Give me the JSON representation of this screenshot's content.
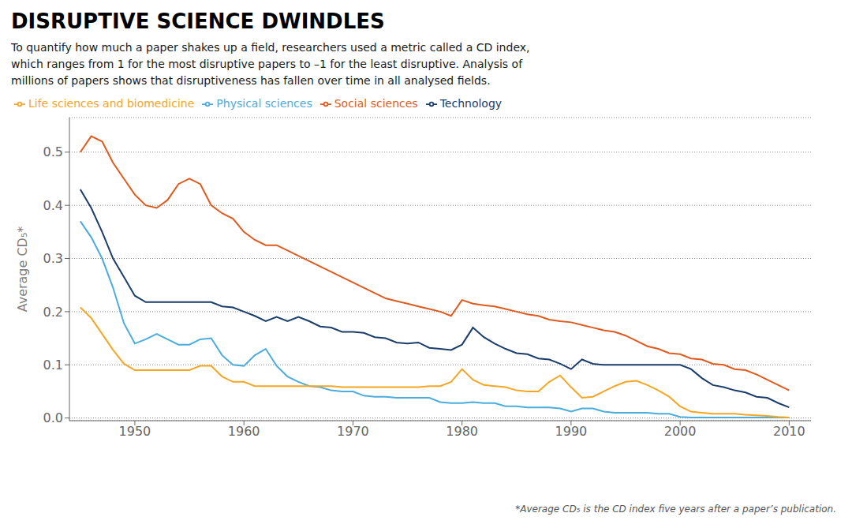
{
  "chart_data": {
    "type": "line",
    "title": "DISRUPTIVE SCIENCE DWINDLES",
    "subtitle": "To quantify how much a paper shakes up a field, researchers used a metric called a CD index,\nwhich ranges from 1 for the most disruptive papers to –1 for the least disruptive. Analysis of\nmillions of papers shows that disruptiveness has fallen over time in all analysed fields.",
    "annotations": [
      "*Average CD₅ is the CD index five years after a paper’s publication."
    ],
    "ylabel": "Average CD₅*",
    "xlim": [
      1944,
      2012
    ],
    "xticks": [
      1950,
      1960,
      1970,
      1980,
      1990,
      2000,
      2010
    ],
    "ylim": [
      -0.005,
      0.565
    ],
    "yticks": [
      {
        "value": 0,
        "label": "0.0"
      },
      {
        "value": 0.1,
        "label": "0.1"
      },
      {
        "value": 0.2,
        "label": "0.2"
      },
      {
        "value": 0.3,
        "label": "0.3"
      },
      {
        "value": 0.4,
        "label": "0.4"
      },
      {
        "value": 0.5,
        "label": "0.5"
      }
    ],
    "grid": true,
    "legend": "top",
    "x": [
      1945,
      1946,
      1947,
      1948,
      1949,
      1950,
      1951,
      1952,
      1953,
      1954,
      1955,
      1956,
      1957,
      1958,
      1959,
      1960,
      1961,
      1962,
      1963,
      1964,
      1965,
      1966,
      1967,
      1968,
      1969,
      1970,
      1971,
      1972,
      1973,
      1974,
      1975,
      1976,
      1977,
      1978,
      1979,
      1980,
      1981,
      1982,
      1983,
      1984,
      1985,
      1986,
      1987,
      1988,
      1989,
      1990,
      1991,
      1992,
      1993,
      1994,
      1995,
      1996,
      1997,
      1998,
      1999,
      2000,
      2001,
      2002,
      2003,
      2004,
      2005,
      2006,
      2007,
      2008,
      2009,
      2010
    ],
    "series": [
      {
        "name": "Social sciences",
        "color": "#E05A1E",
        "values": [
          0.5,
          0.53,
          0.52,
          0.48,
          0.45,
          0.42,
          0.4,
          0.395,
          0.41,
          0.44,
          0.45,
          0.44,
          0.4,
          0.385,
          0.375,
          0.35,
          0.335,
          0.325,
          0.325,
          0.315,
          0.305,
          0.295,
          0.285,
          0.275,
          0.265,
          0.255,
          0.245,
          0.235,
          0.225,
          0.22,
          0.215,
          0.21,
          0.205,
          0.2,
          0.192,
          0.222,
          0.215,
          0.212,
          0.21,
          0.205,
          0.2,
          0.195,
          0.192,
          0.185,
          0.182,
          0.18,
          0.175,
          0.17,
          0.165,
          0.162,
          0.155,
          0.145,
          0.135,
          0.13,
          0.122,
          0.12,
          0.112,
          0.11,
          0.102,
          0.1,
          0.092,
          0.09,
          0.082,
          0.072,
          0.062,
          0.052
        ]
      },
      {
        "name": "Technology",
        "color": "#1A3D6B",
        "values": [
          0.43,
          0.395,
          0.35,
          0.3,
          0.265,
          0.23,
          0.218,
          0.218,
          0.218,
          0.218,
          0.218,
          0.218,
          0.218,
          0.21,
          0.208,
          0.2,
          0.192,
          0.182,
          0.19,
          0.182,
          0.19,
          0.182,
          0.172,
          0.17,
          0.162,
          0.162,
          0.16,
          0.152,
          0.15,
          0.142,
          0.14,
          0.142,
          0.132,
          0.13,
          0.128,
          0.138,
          0.17,
          0.152,
          0.14,
          0.13,
          0.122,
          0.12,
          0.112,
          0.11,
          0.102,
          0.092,
          0.11,
          0.102,
          0.1,
          0.1,
          0.1,
          0.1,
          0.1,
          0.1,
          0.1,
          0.1,
          0.092,
          0.075,
          0.062,
          0.058,
          0.052,
          0.048,
          0.04,
          0.038,
          0.028,
          0.02
        ]
      },
      {
        "name": "Physical sciences",
        "color": "#4AADDB",
        "values": [
          0.37,
          0.34,
          0.3,
          0.245,
          0.178,
          0.14,
          0.148,
          0.158,
          0.148,
          0.138,
          0.138,
          0.148,
          0.15,
          0.118,
          0.1,
          0.098,
          0.118,
          0.13,
          0.098,
          0.078,
          0.068,
          0.06,
          0.058,
          0.052,
          0.05,
          0.05,
          0.042,
          0.04,
          0.04,
          0.038,
          0.038,
          0.038,
          0.038,
          0.03,
          0.028,
          0.028,
          0.03,
          0.028,
          0.028,
          0.022,
          0.022,
          0.02,
          0.02,
          0.02,
          0.018,
          0.012,
          0.018,
          0.018,
          0.012,
          0.01,
          0.01,
          0.01,
          0.01,
          0.008,
          0.008,
          0.002,
          0.001,
          0.001,
          0.001,
          0.001,
          0.001,
          0.001,
          0.001,
          0.001,
          0.001,
          0.001
        ]
      },
      {
        "name": "Life sciences and biomedicine",
        "color": "#F5A623",
        "values": [
          0.208,
          0.188,
          0.158,
          0.128,
          0.102,
          0.09,
          0.09,
          0.09,
          0.09,
          0.09,
          0.09,
          0.098,
          0.098,
          0.078,
          0.068,
          0.068,
          0.06,
          0.06,
          0.06,
          0.06,
          0.06,
          0.06,
          0.06,
          0.06,
          0.058,
          0.058,
          0.058,
          0.058,
          0.058,
          0.058,
          0.058,
          0.058,
          0.06,
          0.06,
          0.068,
          0.092,
          0.072,
          0.062,
          0.06,
          0.058,
          0.052,
          0.05,
          0.05,
          0.068,
          0.08,
          0.058,
          0.038,
          0.04,
          0.05,
          0.06,
          0.068,
          0.07,
          0.062,
          0.052,
          0.04,
          0.022,
          0.012,
          0.01,
          0.008,
          0.008,
          0.008,
          0.006,
          0.005,
          0.004,
          0.002,
          0.001
        ]
      }
    ]
  }
}
